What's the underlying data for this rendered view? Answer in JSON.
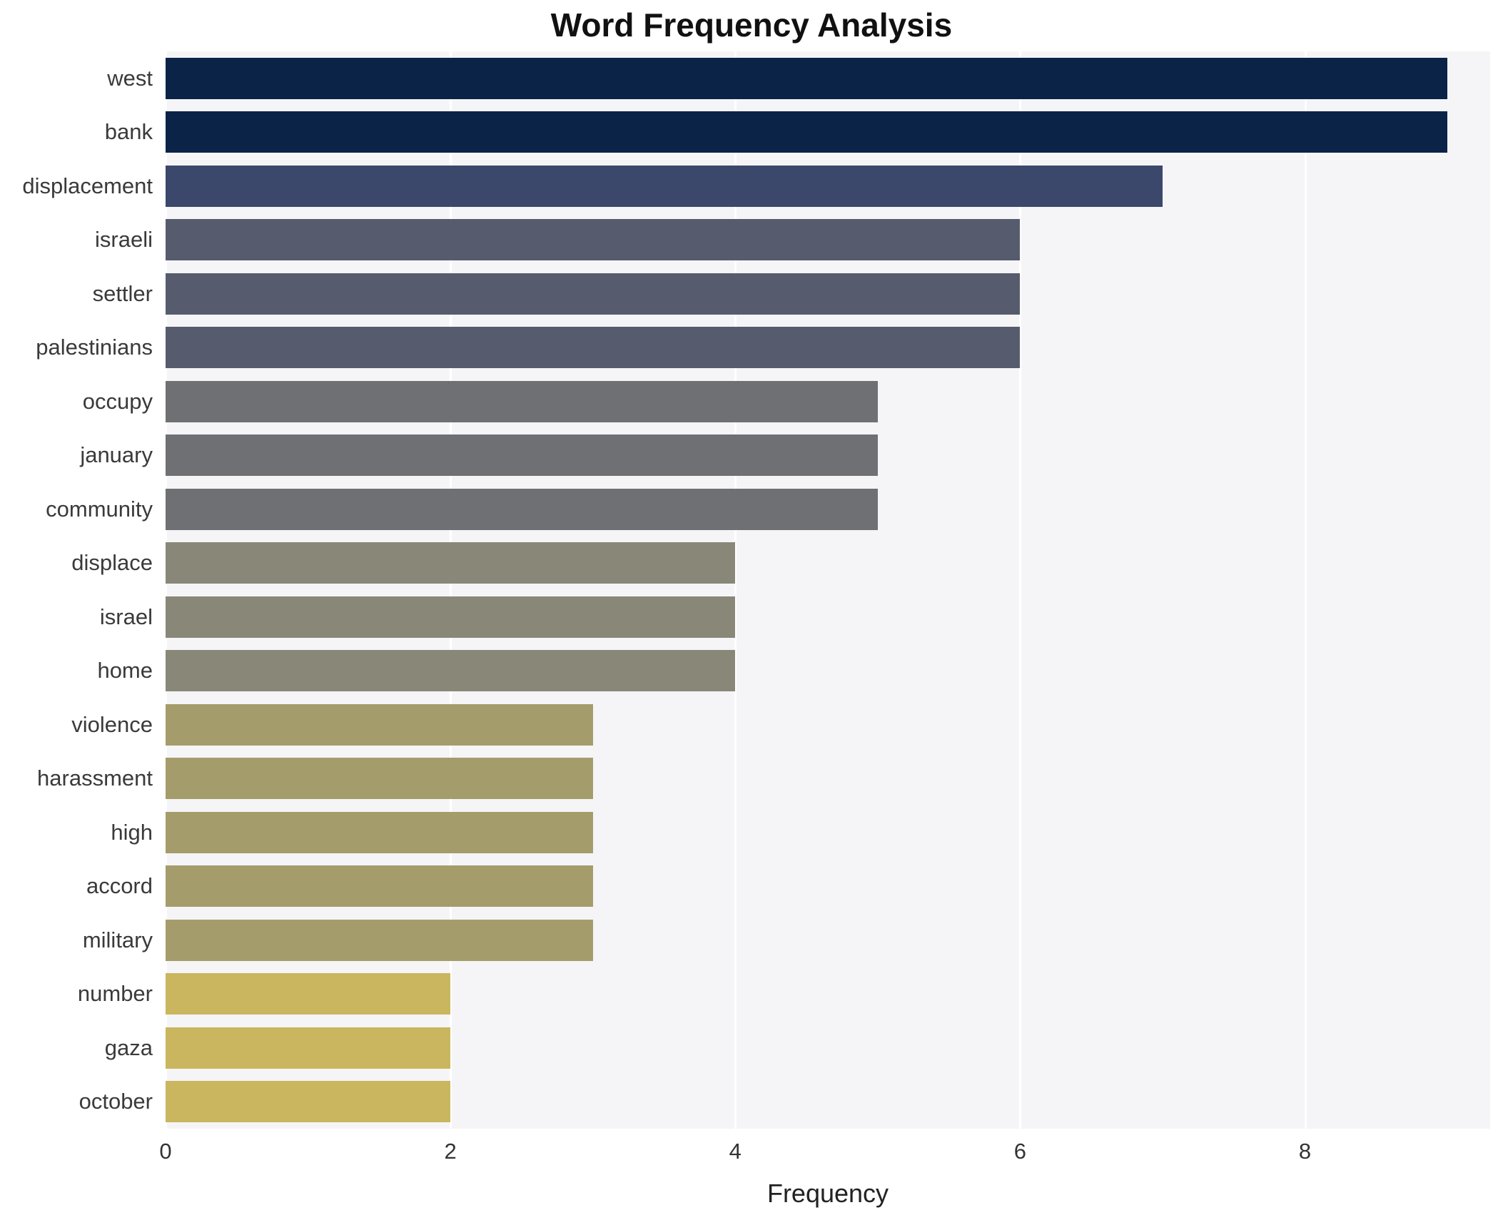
{
  "chart_data": {
    "type": "bar",
    "orientation": "horizontal",
    "title": "Word Frequency Analysis",
    "xlabel": "Frequency",
    "ylabel": "",
    "categories": [
      "west",
      "bank",
      "displacement",
      "israeli",
      "settler",
      "palestinians",
      "occupy",
      "january",
      "community",
      "displace",
      "israel",
      "home",
      "violence",
      "harassment",
      "high",
      "accord",
      "military",
      "number",
      "gaza",
      "october"
    ],
    "values": [
      9,
      9,
      7,
      6,
      6,
      6,
      5,
      5,
      5,
      4,
      4,
      4,
      3,
      3,
      3,
      3,
      3,
      2,
      2,
      2
    ],
    "bar_colors": [
      "#0c2348",
      "#0c2348",
      "#3b476b",
      "#565c6d",
      "#565c6d",
      "#565c6d",
      "#6e7073",
      "#6e7073",
      "#6e7073",
      "#898778",
      "#898778",
      "#898778",
      "#a59c6b",
      "#a59c6b",
      "#a59c6b",
      "#a59c6b",
      "#a59c6b",
      "#c9b65e",
      "#c9b65e",
      "#c9b65e"
    ],
    "xlim": [
      0,
      9.3
    ],
    "xticks": [
      0,
      2,
      4,
      6,
      8
    ],
    "grid": "vertical-white-gridlines",
    "legend": "none",
    "plot_background": "#f5f5f7",
    "page_background": "#ffffff"
  }
}
